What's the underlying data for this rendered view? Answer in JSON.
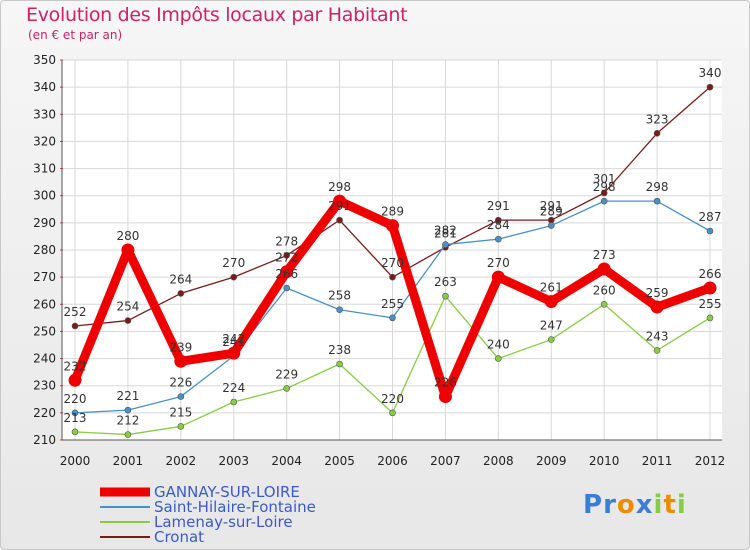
{
  "chart_data": {
    "type": "line",
    "title": "Evolution des Impôts locaux par Habitant",
    "subtitle": "(en € et par an)",
    "categories": [
      "2000",
      "2001",
      "2002",
      "2003",
      "2004",
      "2005",
      "2006",
      "2007",
      "2008",
      "2009",
      "2010",
      "2011",
      "2012"
    ],
    "ylim": [
      210,
      350
    ],
    "yticks": [
      210,
      220,
      230,
      240,
      250,
      260,
      270,
      280,
      290,
      300,
      310,
      320,
      330,
      340,
      350
    ],
    "grid": true,
    "series": [
      {
        "name": "GANNAY-SUR-LOIRE",
        "color": "#ee0000",
        "values": [
          232,
          280,
          239,
          242,
          272,
          298,
          289,
          226,
          270,
          261,
          273,
          259,
          266
        ]
      },
      {
        "name": "Saint-Hilaire-Fontaine",
        "color": "#4a90c8",
        "values": [
          220,
          221,
          226,
          241,
          266,
          258,
          255,
          282,
          284,
          289,
          298,
          298,
          287
        ]
      },
      {
        "name": "Lamenay-sur-Loire",
        "color": "#88cc44",
        "values": [
          213,
          212,
          215,
          224,
          229,
          238,
          220,
          263,
          240,
          247,
          260,
          243,
          255
        ]
      },
      {
        "name": "Cronat",
        "color": "#7a1a1a",
        "values": [
          252,
          254,
          264,
          270,
          278,
          291,
          270,
          281,
          291,
          291,
          301,
          323,
          340
        ]
      }
    ]
  },
  "logo": {
    "text": "Proxiti",
    "letters": [
      "P",
      "r",
      "o",
      "x",
      "i",
      "t",
      "i"
    ],
    "colors": [
      "#3a7fd5",
      "#3a7fd5",
      "#f08a00",
      "#3a7fd5",
      "#88cc44",
      "#f08a00",
      "#88cc44"
    ]
  }
}
